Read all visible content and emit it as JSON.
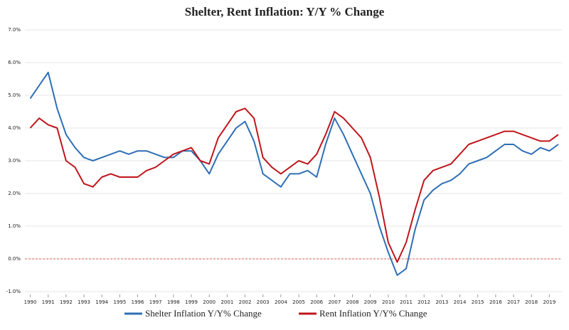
{
  "chart_data": {
    "type": "line",
    "title": "Shelter, Rent Inflation: Y/Y % Change",
    "x": [
      1990.0,
      1990.5,
      1991.0,
      1991.5,
      1992.0,
      1992.5,
      1993.0,
      1993.5,
      1994.0,
      1994.5,
      1995.0,
      1995.5,
      1996.0,
      1996.5,
      1997.0,
      1997.5,
      1998.0,
      1998.5,
      1999.0,
      1999.5,
      2000.0,
      2000.5,
      2001.0,
      2001.5,
      2002.0,
      2002.5,
      2003.0,
      2003.5,
      2004.0,
      2004.5,
      2005.0,
      2005.5,
      2006.0,
      2006.5,
      2007.0,
      2007.5,
      2008.0,
      2008.5,
      2009.0,
      2009.5,
      2010.0,
      2010.5,
      2011.0,
      2011.5,
      2012.0,
      2012.5,
      2013.0,
      2013.5,
      2014.0,
      2014.5,
      2015.0,
      2015.5,
      2016.0,
      2016.5,
      2017.0,
      2017.5,
      2018.0,
      2018.5,
      2019.0,
      2019.5
    ],
    "series": [
      {
        "name": "Shelter Inflation Y/Y% Change",
        "color": "#2f6fb5",
        "values": [
          4.9,
          5.3,
          5.7,
          4.6,
          3.8,
          3.4,
          3.1,
          3.0,
          3.1,
          3.2,
          3.3,
          3.2,
          3.3,
          3.3,
          3.2,
          3.1,
          3.1,
          3.3,
          3.3,
          3.0,
          2.6,
          3.2,
          3.6,
          4.0,
          4.2,
          3.6,
          2.6,
          2.4,
          2.2,
          2.6,
          2.6,
          2.7,
          2.5,
          3.5,
          4.3,
          3.8,
          3.2,
          2.6,
          2.0,
          1.0,
          0.2,
          -0.5,
          -0.3,
          0.9,
          1.8,
          2.1,
          2.3,
          2.4,
          2.6,
          2.9,
          3.0,
          3.1,
          3.3,
          3.5,
          3.5,
          3.3,
          3.2,
          3.4,
          3.3,
          3.5
        ]
      },
      {
        "name": "Rent Inflation Y/Y% Change",
        "color": "#c0161b",
        "values": [
          4.0,
          4.3,
          4.1,
          4.0,
          3.0,
          2.8,
          2.3,
          2.2,
          2.5,
          2.6,
          2.5,
          2.5,
          2.5,
          2.7,
          2.8,
          3.0,
          3.2,
          3.3,
          3.4,
          3.0,
          2.9,
          3.7,
          4.1,
          4.5,
          4.6,
          4.3,
          3.1,
          2.8,
          2.6,
          2.8,
          3.0,
          2.9,
          3.2,
          3.8,
          4.5,
          4.3,
          4.0,
          3.7,
          3.1,
          1.9,
          0.5,
          -0.1,
          0.5,
          1.5,
          2.4,
          2.7,
          2.8,
          2.9,
          3.2,
          3.5,
          3.6,
          3.7,
          3.8,
          3.9,
          3.9,
          3.8,
          3.7,
          3.6,
          3.6,
          3.8
        ]
      }
    ],
    "xlim": [
      1989.7,
      2019.7
    ],
    "xticks": [
      1990,
      1991,
      1992,
      1993,
      1994,
      1995,
      1996,
      1997,
      1998,
      1999,
      2000,
      2001,
      2002,
      2003,
      2004,
      2005,
      2006,
      2007,
      2008,
      2009,
      2010,
      2011,
      2012,
      2013,
      2014,
      2015,
      2016,
      2017,
      2018,
      2019
    ],
    "ylim": [
      -1,
      7
    ],
    "yticks": [
      {
        "value": -1,
        "label": "-1.0%"
      },
      {
        "value": 0,
        "label": "0.0%"
      },
      {
        "value": 1,
        "label": "1.0%"
      },
      {
        "value": 2,
        "label": "2.0%"
      },
      {
        "value": 3,
        "label": "3.0%"
      },
      {
        "value": 4,
        "label": "4.0%"
      },
      {
        "value": 5,
        "label": "5.0%"
      },
      {
        "value": 6,
        "label": "6.0%"
      },
      {
        "value": 7,
        "label": "7.0%"
      }
    ],
    "grid": true
  }
}
